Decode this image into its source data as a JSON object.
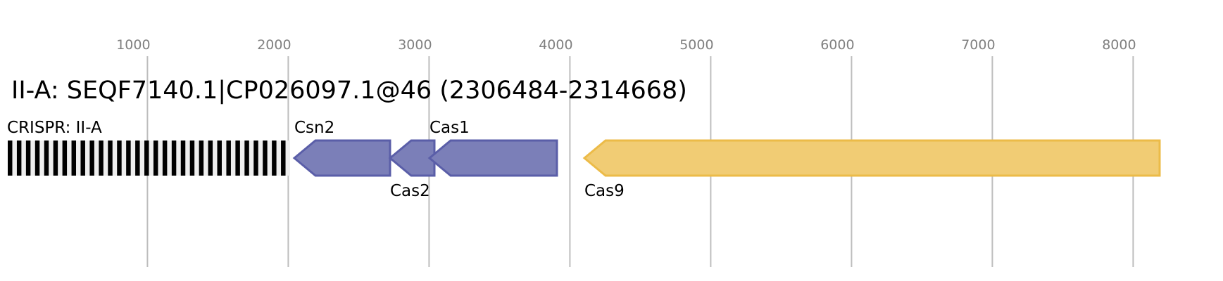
{
  "title": "II-A: SEQF7140.1|CP026097.1@46 (2306484-2314668)",
  "axis": {
    "ticks": [
      1000,
      2000,
      3000,
      4000,
      5000,
      6000,
      7000,
      8000
    ]
  },
  "crispr": {
    "label": "CRISPR: II-A",
    "start": 8,
    "end": 2013,
    "repeat_count": 31,
    "colors": {
      "repeat": "#000000",
      "spacer": "#eeeeee"
    }
  },
  "genes": [
    {
      "name": "Csn2",
      "start": 2043,
      "end": 2723,
      "strand": "-",
      "label_pos": "above",
      "fill": "#7b7fb8",
      "stroke": "#5a5ea8"
    },
    {
      "name": "Cas2",
      "start": 2723,
      "end": 3038,
      "strand": "-",
      "label_pos": "below",
      "fill": "#7b7fb8",
      "stroke": "#5a5ea8"
    },
    {
      "name": "Cas1",
      "start": 3003,
      "end": 3908,
      "strand": "-",
      "label_pos": "above",
      "fill": "#7b7fb8",
      "stroke": "#5a5ea8"
    },
    {
      "name": "Cas9",
      "start": 4103,
      "end": 8188,
      "strand": "-",
      "label_pos": "below",
      "fill": "#f1cc74",
      "stroke": "#ecbb48"
    }
  ]
}
